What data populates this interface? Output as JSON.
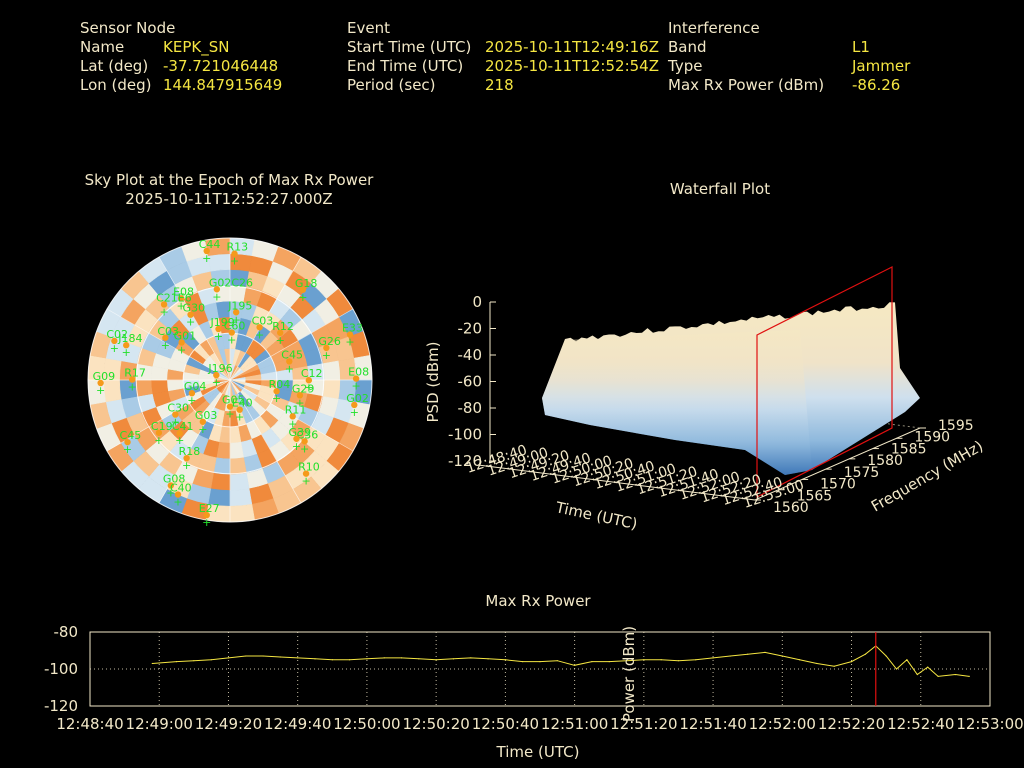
{
  "header": {
    "sensor": {
      "title": "Sensor Node",
      "name_label": "Name",
      "name_value": "KEPK_SN",
      "lat_label": "Lat (deg)",
      "lat_value": "-37.721046448",
      "lon_label": "Lon (deg)",
      "lon_value": "144.847915649"
    },
    "event": {
      "title": "Event",
      "start_label": "Start Time (UTC)",
      "start_value": "2025-10-11T12:49:16Z",
      "end_label": "End Time (UTC)",
      "end_value": "2025-10-11T12:52:54Z",
      "period_label": "Period (sec)",
      "period_value": "218"
    },
    "interference": {
      "title": "Interference",
      "band_label": "Band",
      "band_value": "L1",
      "type_label": "Type",
      "type_value": "Jammer",
      "power_label": "Max Rx Power (dBm)",
      "power_value": "-86.26"
    }
  },
  "skyplot": {
    "title": "Sky Plot at the Epoch of Max Rx Power",
    "subtitle": "2025-10-11T12:52:27.000Z",
    "satellites": [
      {
        "id": "C44",
        "az": 350,
        "el": 5
      },
      {
        "id": "R13",
        "az": 2,
        "el": 8
      },
      {
        "id": "E08",
        "az": 330,
        "el": 28
      },
      {
        "id": "G02C26",
        "az": 352,
        "el": 30
      },
      {
        "id": "G18",
        "az": 38,
        "el": 15
      },
      {
        "id": "C21E6",
        "az": 320,
        "el": 25
      },
      {
        "id": "G30",
        "az": 330,
        "el": 40
      },
      {
        "id": "J195",
        "az": 5,
        "el": 45
      },
      {
        "id": "J199",
        "az": 348,
        "el": 55
      },
      {
        "id": "C60",
        "az": 2,
        "el": 58
      },
      {
        "id": "C03",
        "az": 28,
        "el": 50
      },
      {
        "id": "R12",
        "az": 45,
        "el": 45
      },
      {
        "id": "E33",
        "az": 68,
        "el": 8
      },
      {
        "id": "C03",
        "az": 305,
        "el": 40
      },
      {
        "id": "G01",
        "az": 310,
        "el": 50
      },
      {
        "id": "J184",
        "az": 290,
        "el": 20
      },
      {
        "id": "G26",
        "az": 70,
        "el": 25
      },
      {
        "id": "C02",
        "az": 290,
        "el": 12
      },
      {
        "id": "C45",
        "az": 70,
        "el": 50
      },
      {
        "id": "J196",
        "az": 300,
        "el": 80
      },
      {
        "id": "G09",
        "az": 270,
        "el": 8
      },
      {
        "id": "R17",
        "az": 272,
        "el": 28
      },
      {
        "id": "E08",
        "az": 88,
        "el": 10
      },
      {
        "id": "C12",
        "az": 88,
        "el": 40
      },
      {
        "id": "G04",
        "az": 255,
        "el": 65
      },
      {
        "id": "R04",
        "az": 100,
        "el": 60
      },
      {
        "id": "G29",
        "az": 100,
        "el": 45
      },
      {
        "id": "G02",
        "az": 100,
        "el": 10
      },
      {
        "id": "C30",
        "az": 240,
        "el": 50
      },
      {
        "id": "C19",
        "az": 235,
        "el": 35
      },
      {
        "id": "C45",
        "az": 240,
        "el": 15
      },
      {
        "id": "R11",
        "az": 118,
        "el": 45
      },
      {
        "id": "G03",
        "az": 215,
        "el": 60
      },
      {
        "id": "C41",
        "az": 225,
        "el": 45
      },
      {
        "id": "G05",
        "az": 180,
        "el": 75
      },
      {
        "id": "E40",
        "az": 160,
        "el": 72
      },
      {
        "id": "C36",
        "az": 128,
        "el": 30
      },
      {
        "id": "G39",
        "az": 130,
        "el": 35
      },
      {
        "id": "R18",
        "az": 210,
        "el": 35
      },
      {
        "id": "R10",
        "az": 140,
        "el": 15
      },
      {
        "id": "G08",
        "az": 210,
        "el": 15
      },
      {
        "id": "C40",
        "az": 205,
        "el": 12
      },
      {
        "id": "E27",
        "az": 190,
        "el": 5
      }
    ]
  },
  "waterfall": {
    "title": "Waterfall Plot",
    "zlabel": "PSD (dBm)",
    "xlabel": "Time (UTC)",
    "ylabel": "Frequency (MHz)",
    "zticks": [
      "0",
      "-20",
      "-40",
      "-60",
      "-80",
      "-100",
      "-120"
    ],
    "yticks": [
      "1560",
      "1565",
      "1570",
      "1575",
      "1580",
      "1585",
      "1590",
      "1595"
    ],
    "xticks": [
      "12:48:40",
      "12:49:00",
      "12:49:20",
      "12:49:40",
      "12:50:00",
      "12:50:20",
      "12:50:40",
      "12:51:00",
      "12:51:20",
      "12:51:40",
      "12:52:00",
      "12:52:20",
      "12:52:40",
      "12:53:00"
    ]
  },
  "maxpower": {
    "title": "Max Rx Power",
    "xlabel": "Time (UTC)",
    "ylabel": "Power (dBm)",
    "line_color": "#f5e642",
    "marker_color": "#e01010"
  },
  "chart_data": {
    "type": "line",
    "title": "Max Rx Power",
    "xlabel": "Time (UTC)",
    "ylabel": "Power (dBm)",
    "ylim": [
      -120,
      -80
    ],
    "xlim": [
      "12:48:40",
      "12:53:00"
    ],
    "xticks": [
      "12:48:40",
      "12:49:00",
      "12:49:20",
      "12:49:40",
      "12:50:00",
      "12:50:20",
      "12:50:40",
      "12:51:00",
      "12:51:20",
      "12:51:40",
      "12:52:00",
      "12:52:20",
      "12:52:40",
      "12:53:00"
    ],
    "yticks": [
      -80,
      -100,
      -120
    ],
    "grid": true,
    "marker_time": "12:52:27",
    "series": [
      {
        "x": [
          "12:48:58",
          "12:49:05",
          "12:49:10",
          "12:49:15",
          "12:49:20",
          "12:49:25",
          "12:49:30",
          "12:49:35",
          "12:49:40",
          "12:49:45",
          "12:49:50",
          "12:49:55",
          "12:50:00",
          "12:50:05",
          "12:50:10",
          "12:50:15",
          "12:50:20",
          "12:50:25",
          "12:50:30",
          "12:50:35",
          "12:50:40",
          "12:50:45",
          "12:50:50",
          "12:50:55",
          "12:51:00",
          "12:51:05",
          "12:51:10",
          "12:51:15",
          "12:51:20",
          "12:51:25",
          "12:51:30",
          "12:51:35",
          "12:51:40",
          "12:51:45",
          "12:51:50",
          "12:51:55",
          "12:52:00",
          "12:52:05",
          "12:52:10",
          "12:52:15",
          "12:52:20",
          "12:52:24",
          "12:52:27",
          "12:52:30",
          "12:52:33",
          "12:52:36",
          "12:52:39",
          "12:52:42",
          "12:52:45",
          "12:52:50",
          "12:52:54"
        ],
        "values": [
          -97,
          -96,
          -95.5,
          -95,
          -94,
          -93,
          -93,
          -93.5,
          -94,
          -94.5,
          -95,
          -95,
          -94.5,
          -94,
          -94,
          -94.5,
          -95,
          -94.5,
          -94,
          -94.5,
          -95,
          -96,
          -96,
          -95.5,
          -98,
          -96,
          -96,
          -95.5,
          -95,
          -95,
          -95.5,
          -95,
          -94,
          -93,
          -92,
          -91,
          -93,
          -95,
          -97,
          -98.5,
          -96,
          -92,
          -87.5,
          -93,
          -100,
          -95,
          -103,
          -99,
          -104,
          -103,
          -104
        ]
      }
    ]
  }
}
